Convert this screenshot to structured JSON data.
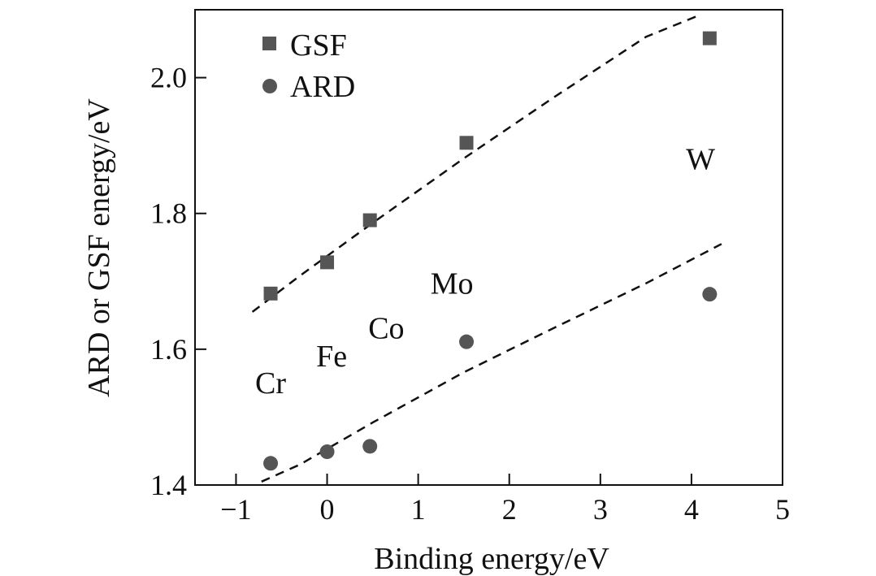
{
  "chart_data": {
    "type": "scatter",
    "xlabel": "Binding energy/eV",
    "ylabel": "ARD or GSF energy/eV",
    "xlim": [
      -1.45,
      5
    ],
    "ylim": [
      1.4,
      2.1
    ],
    "xticks": [
      -1,
      0,
      1,
      2,
      3,
      4,
      5
    ],
    "xtick_labels": [
      "−1",
      "0",
      "1",
      "2",
      "3",
      "4",
      "5"
    ],
    "yticks": [
      1.4,
      1.6,
      1.8,
      2.0
    ],
    "ytick_labels": [
      "1.4",
      "1.6",
      "1.8",
      "2.0"
    ],
    "grid": false,
    "legend_position": "top-left",
    "series": [
      {
        "name": "GSF",
        "marker": "square",
        "color": "#555555",
        "x": [
          -0.62,
          0.0,
          0.47,
          1.53,
          4.2
        ],
        "y": [
          1.682,
          1.728,
          1.79,
          1.904,
          2.058
        ]
      },
      {
        "name": "ARD",
        "marker": "circle",
        "color": "#555555",
        "x": [
          -0.62,
          0.0,
          0.47,
          1.53,
          4.2
        ],
        "y": [
          1.432,
          1.449,
          1.457,
          1.611,
          1.681
        ]
      }
    ],
    "trend_lines": [
      {
        "series": "GSF",
        "style": "dashed",
        "points": [
          [
            -0.82,
            1.655
          ],
          [
            -0.3,
            1.708
          ],
          [
            0.5,
            1.786
          ],
          [
            1.5,
            1.881
          ],
          [
            2.5,
            1.972
          ],
          [
            3.5,
            2.06
          ],
          [
            4.05,
            2.09
          ]
        ]
      },
      {
        "series": "ARD",
        "style": "dashed",
        "points": [
          [
            -0.72,
            1.405
          ],
          [
            -0.3,
            1.43
          ],
          [
            0.5,
            1.492
          ],
          [
            1.5,
            1.566
          ],
          [
            2.5,
            1.632
          ],
          [
            3.5,
            1.697
          ],
          [
            4.33,
            1.755
          ]
        ]
      }
    ],
    "annotations": [
      {
        "text": "Cr",
        "x": -0.62,
        "y": 1.535
      },
      {
        "text": "Fe",
        "x": 0.05,
        "y": 1.575
      },
      {
        "text": "Co",
        "x": 0.65,
        "y": 1.616
      },
      {
        "text": "Mo",
        "x": 1.37,
        "y": 1.682
      },
      {
        "text": "W",
        "x": 4.1,
        "y": 1.865
      }
    ]
  }
}
